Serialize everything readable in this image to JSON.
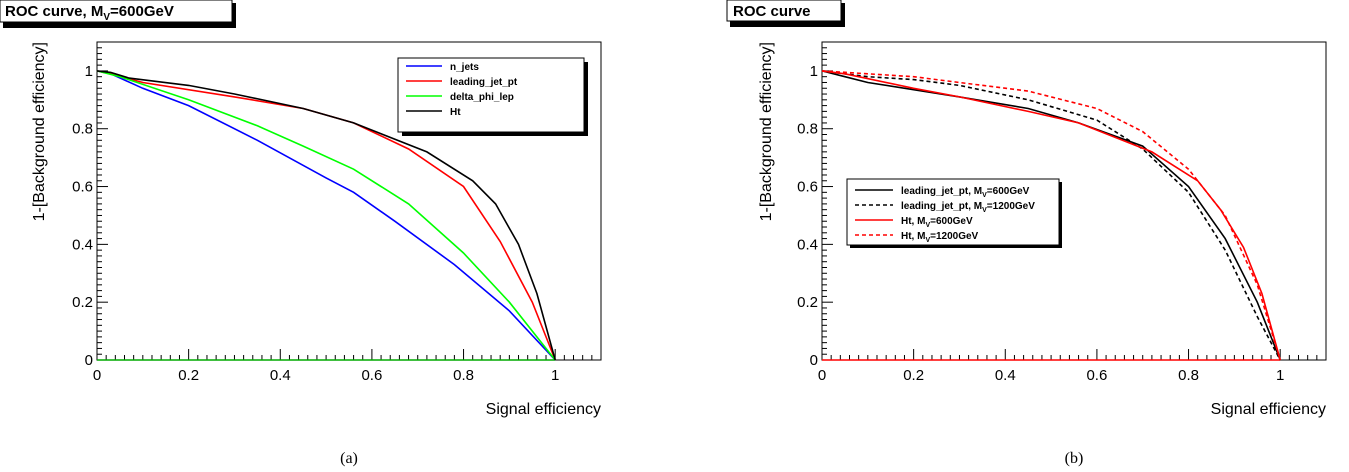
{
  "chart_data": [
    {
      "type": "line",
      "title": {
        "main": "ROC curve, M",
        "sub": "V",
        "rest": "=600GeV"
      },
      "xlabel": "Signal efficiency",
      "ylabel": "1-[Background efficiency]",
      "xlim": [
        0,
        1.1
      ],
      "ylim": [
        0,
        1.1
      ],
      "x_ticks": [
        "0",
        "0.2",
        "0.4",
        "0.6",
        "0.8",
        "1"
      ],
      "y_ticks": [
        "0",
        "0.2",
        "0.4",
        "0.6",
        "0.8",
        "1"
      ],
      "legend_position": "top-right",
      "caption": "(a)",
      "series": [
        {
          "name": "n_jets",
          "name_rest": "",
          "color": "#0000ff",
          "dash": false,
          "points": [
            [
              0,
              1
            ],
            [
              0.03,
              0.99
            ],
            [
              0.1,
              0.94
            ],
            [
              0.2,
              0.88
            ],
            [
              0.35,
              0.76
            ],
            [
              0.5,
              0.63
            ],
            [
              0.56,
              0.58
            ],
            [
              0.65,
              0.48
            ],
            [
              0.78,
              0.33
            ],
            [
              0.9,
              0.17
            ],
            [
              1,
              0
            ]
          ]
        },
        {
          "name": "leading_jet_pt",
          "name_rest": "",
          "color": "#ff0000",
          "dash": false,
          "points": [
            [
              0,
              1
            ],
            [
              0.03,
              0.99
            ],
            [
              0.1,
              0.96
            ],
            [
              0.3,
              0.91
            ],
            [
              0.45,
              0.87
            ],
            [
              0.56,
              0.82
            ],
            [
              0.68,
              0.73
            ],
            [
              0.8,
              0.6
            ],
            [
              0.88,
              0.41
            ],
            [
              0.95,
              0.2
            ],
            [
              1,
              0
            ]
          ]
        },
        {
          "name": "delta_phi_lep",
          "name_rest": "",
          "color": "#00ff00",
          "dash": false,
          "points": [
            [
              0,
              1
            ],
            [
              0.05,
              0.98
            ],
            [
              0.2,
              0.9
            ],
            [
              0.35,
              0.81
            ],
            [
              0.45,
              0.74
            ],
            [
              0.56,
              0.66
            ],
            [
              0.68,
              0.54
            ],
            [
              0.8,
              0.37
            ],
            [
              0.9,
              0.2
            ],
            [
              1,
              0
            ]
          ]
        },
        {
          "name": "Ht",
          "name_rest": "",
          "color": "#000000",
          "dash": false,
          "points": [
            [
              0,
              1
            ],
            [
              0.03,
              0.995
            ],
            [
              0.07,
              0.975
            ],
            [
              0.2,
              0.95
            ],
            [
              0.3,
              0.92
            ],
            [
              0.45,
              0.87
            ],
            [
              0.56,
              0.82
            ],
            [
              0.72,
              0.72
            ],
            [
              0.82,
              0.62
            ],
            [
              0.87,
              0.54
            ],
            [
              0.92,
              0.4
            ],
            [
              0.96,
              0.23
            ],
            [
              1,
              0
            ]
          ]
        }
      ]
    },
    {
      "type": "line",
      "title": {
        "main": "ROC curve",
        "sub": "",
        "rest": ""
      },
      "xlabel": "Signal efficiency",
      "ylabel": "1-[Background efficiency]",
      "xlim": [
        0,
        1.1
      ],
      "ylim": [
        0,
        1.1
      ],
      "x_ticks": [
        "0",
        "0.2",
        "0.4",
        "0.6",
        "0.8",
        "1"
      ],
      "y_ticks": [
        "0",
        "0.2",
        "0.4",
        "0.6",
        "0.8",
        "1"
      ],
      "legend_position": "center-left",
      "caption": "(b)",
      "series": [
        {
          "name": "leading_jet_pt, M",
          "name_sub": "V",
          "name_rest": "=600GeV",
          "color": "#000000",
          "dash": false,
          "points": [
            [
              0,
              1
            ],
            [
              0.05,
              0.98
            ],
            [
              0.1,
              0.96
            ],
            [
              0.3,
              0.91
            ],
            [
              0.45,
              0.87
            ],
            [
              0.56,
              0.82
            ],
            [
              0.7,
              0.74
            ],
            [
              0.8,
              0.6
            ],
            [
              0.88,
              0.42
            ],
            [
              0.95,
              0.2
            ],
            [
              1,
              0
            ]
          ]
        },
        {
          "name": "leading_jet_pt, M",
          "name_sub": "V",
          "name_rest": "=1200GeV",
          "color": "#000000",
          "dash": true,
          "points": [
            [
              0,
              1
            ],
            [
              0.1,
              0.98
            ],
            [
              0.2,
              0.97
            ],
            [
              0.3,
              0.95
            ],
            [
              0.45,
              0.9
            ],
            [
              0.6,
              0.83
            ],
            [
              0.7,
              0.73
            ],
            [
              0.8,
              0.58
            ],
            [
              0.88,
              0.38
            ],
            [
              0.95,
              0.15
            ],
            [
              1,
              0
            ]
          ]
        },
        {
          "name": "Ht, M",
          "name_sub": "V",
          "name_rest": "=600GeV",
          "color": "#ff0000",
          "dash": false,
          "points": [
            [
              0,
              1
            ],
            [
              0.05,
              0.99
            ],
            [
              0.2,
              0.94
            ],
            [
              0.3,
              0.91
            ],
            [
              0.45,
              0.86
            ],
            [
              0.56,
              0.82
            ],
            [
              0.72,
              0.72
            ],
            [
              0.82,
              0.62
            ],
            [
              0.87,
              0.52
            ],
            [
              0.92,
              0.39
            ],
            [
              0.96,
              0.23
            ],
            [
              1,
              0
            ]
          ]
        },
        {
          "name": "Ht, M",
          "name_sub": "V",
          "name_rest": "=1200GeV",
          "color": "#ff0000",
          "dash": true,
          "points": [
            [
              0,
              1
            ],
            [
              0.1,
              0.99
            ],
            [
              0.2,
              0.98
            ],
            [
              0.3,
              0.96
            ],
            [
              0.45,
              0.93
            ],
            [
              0.6,
              0.87
            ],
            [
              0.7,
              0.79
            ],
            [
              0.8,
              0.66
            ],
            [
              0.88,
              0.5
            ],
            [
              0.95,
              0.26
            ],
            [
              1,
              0
            ]
          ]
        }
      ]
    }
  ]
}
